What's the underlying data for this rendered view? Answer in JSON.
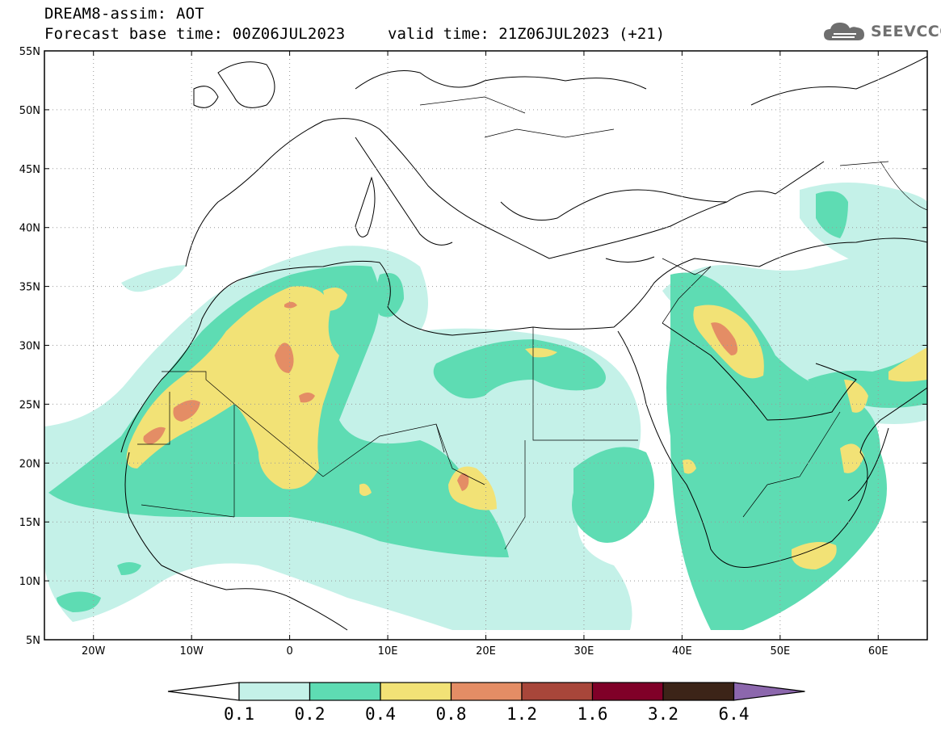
{
  "header": {
    "title_line1": "DREAM8-assim: AOT",
    "base_time": "Forecast base time: 00Z06JUL2023",
    "valid_time": "valid time: 21Z06JUL2023 (+21)"
  },
  "logo": {
    "name": "cloud-icon",
    "text": "SEEVCCC"
  },
  "map": {
    "lon_range": [
      -25,
      65
    ],
    "lat_range": [
      5,
      55
    ],
    "lat_ticks": [
      "55N",
      "50N",
      "45N",
      "40N",
      "35N",
      "30N",
      "25N",
      "20N",
      "15N",
      "10N",
      "5N"
    ],
    "lon_ticks": [
      "20W",
      "10W",
      "0",
      "10E",
      "20E",
      "30E",
      "40E",
      "50E",
      "60E"
    ],
    "grid": "dotted"
  },
  "legend": {
    "levels": [
      "0.1",
      "0.2",
      "0.4",
      "0.8",
      "1.2",
      "1.6",
      "3.2",
      "6.4"
    ],
    "colors": {
      "under": "#ffffff",
      "c1": "#c4f1e8",
      "c2": "#5edcb3",
      "c3": "#f2e276",
      "c4": "#e48d65",
      "c5": "#a8463a",
      "c6": "#800028",
      "c7": "#3c2418",
      "over": "#8c67ad"
    }
  }
}
